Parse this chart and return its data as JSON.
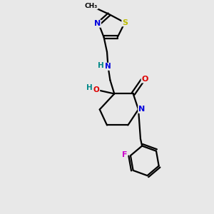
{
  "bg_color": "#e8e8e8",
  "atom_colors": {
    "C": "#000000",
    "N": "#0000dd",
    "O": "#dd0000",
    "S": "#bbbb00",
    "F": "#cc00cc",
    "H": "#008888"
  },
  "bond_color": "#000000",
  "bond_width": 1.6,
  "figsize": [
    3.0,
    3.0
  ],
  "dpi": 100,
  "xlim": [
    0,
    10
  ],
  "ylim": [
    0,
    10
  ]
}
